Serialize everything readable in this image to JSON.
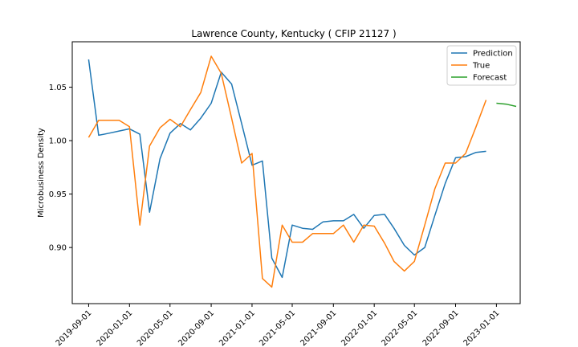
{
  "chart_data": {
    "type": "line",
    "title": "Lawrence County, Kentucky ( CFIP 21127 )",
    "xlabel": "",
    "ylabel": "Microbusiness Density",
    "ylim": [
      0.8475,
      1.0925
    ],
    "xlim": [
      "2019-07-14",
      "2023-03-13"
    ],
    "grid": false,
    "legend_position": "top-right",
    "y_ticks": [
      0.9,
      0.95,
      1.0,
      1.05
    ],
    "y_tick_labels": [
      "0.90",
      "0.95",
      "1.00",
      "1.05"
    ],
    "x_ticks": [
      "2019-09-01",
      "2020-01-01",
      "2020-05-01",
      "2020-09-01",
      "2021-01-01",
      "2021-05-01",
      "2021-09-01",
      "2022-01-01",
      "2022-05-01",
      "2022-09-01",
      "2023-01-01"
    ],
    "series": [
      {
        "name": "Prediction",
        "color": "#1f77b4",
        "x": [
          "2019-09-01",
          "2019-10-01",
          "2019-11-01",
          "2019-12-01",
          "2020-01-01",
          "2020-02-01",
          "2020-03-01",
          "2020-04-01",
          "2020-05-01",
          "2020-06-01",
          "2020-07-01",
          "2020-08-01",
          "2020-09-01",
          "2020-10-01",
          "2020-11-01",
          "2020-12-01",
          "2021-01-01",
          "2021-02-01",
          "2021-03-01",
          "2021-04-01",
          "2021-05-01",
          "2021-06-01",
          "2021-07-01",
          "2021-08-01",
          "2021-09-01",
          "2021-10-01",
          "2021-11-01",
          "2021-12-01",
          "2022-01-01",
          "2022-02-01",
          "2022-03-01",
          "2022-04-01",
          "2022-05-01",
          "2022-06-01",
          "2022-07-01",
          "2022-08-01",
          "2022-09-01",
          "2022-10-01",
          "2022-11-01",
          "2022-12-01"
        ],
        "values": [
          1.076,
          1.005,
          1.007,
          1.009,
          1.011,
          1.006,
          0.933,
          0.983,
          1.007,
          1.016,
          1.01,
          1.021,
          1.035,
          1.064,
          1.053,
          1.016,
          0.977,
          0.981,
          0.89,
          0.872,
          0.921,
          0.918,
          0.917,
          0.924,
          0.925,
          0.925,
          0.931,
          0.918,
          0.93,
          0.931,
          0.918,
          0.902,
          0.893,
          0.9,
          0.93,
          0.96,
          0.984,
          0.985,
          0.989,
          0.99
        ]
      },
      {
        "name": "True",
        "color": "#ff7f0e",
        "x": [
          "2019-09-01",
          "2019-10-01",
          "2019-11-01",
          "2019-12-01",
          "2020-01-01",
          "2020-02-01",
          "2020-03-01",
          "2020-04-01",
          "2020-05-01",
          "2020-06-01",
          "2020-07-01",
          "2020-08-01",
          "2020-09-01",
          "2020-10-01",
          "2020-11-01",
          "2020-12-01",
          "2021-01-01",
          "2021-02-01",
          "2021-03-01",
          "2021-04-01",
          "2021-05-01",
          "2021-06-01",
          "2021-07-01",
          "2021-08-01",
          "2021-09-01",
          "2021-10-01",
          "2021-11-01",
          "2021-12-01",
          "2022-01-01",
          "2022-02-01",
          "2022-03-01",
          "2022-04-01",
          "2022-05-01",
          "2022-06-01",
          "2022-07-01",
          "2022-08-01",
          "2022-09-01",
          "2022-10-01",
          "2022-11-01",
          "2022-12-01"
        ],
        "values": [
          1.003,
          1.019,
          1.019,
          1.019,
          1.013,
          0.921,
          0.995,
          1.012,
          1.02,
          1.013,
          1.029,
          1.045,
          1.079,
          1.063,
          1.021,
          0.979,
          0.988,
          0.871,
          0.863,
          0.921,
          0.905,
          0.905,
          0.913,
          0.913,
          0.913,
          0.921,
          0.905,
          0.921,
          0.92,
          0.904,
          0.887,
          0.878,
          0.887,
          0.921,
          0.955,
          0.979,
          0.979,
          0.988,
          1.013,
          1.038
        ]
      },
      {
        "name": "Forecast",
        "color": "#2ca02c",
        "x": [
          "2023-01-01",
          "2023-02-01",
          "2023-03-01"
        ],
        "values": [
          1.035,
          1.034,
          1.032
        ]
      }
    ]
  }
}
